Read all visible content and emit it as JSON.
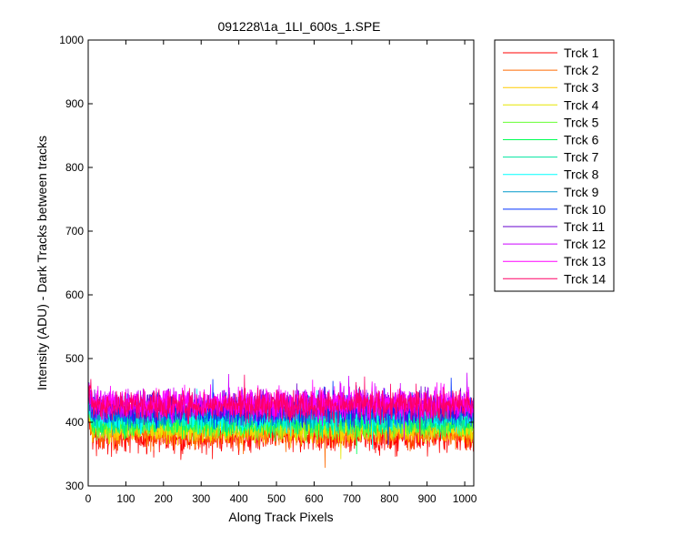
{
  "chart_data": {
    "type": "line",
    "title": "091228\\1a_1LI_600s_1.SPE",
    "xlabel": "Along Track Pixels",
    "ylabel": "Intensity (ADU) - Dark Tracks between tracks",
    "xlim": [
      0,
      1024
    ],
    "ylim": [
      300,
      1000
    ],
    "xticks": [
      0,
      100,
      200,
      300,
      400,
      500,
      600,
      700,
      800,
      900,
      1000
    ],
    "yticks": [
      300,
      400,
      500,
      600,
      700,
      800,
      900,
      1000
    ],
    "grid": false,
    "legend_position": "outside-right",
    "points_per_series": 1024,
    "series": [
      {
        "name": "Trck 1",
        "color": "#ff0000",
        "mean": 378,
        "noise": 13
      },
      {
        "name": "Trck 2",
        "color": "#ff6a00",
        "mean": 384,
        "noise": 12
      },
      {
        "name": "Trck 3",
        "color": "#ffcc00",
        "mean": 390,
        "noise": 11
      },
      {
        "name": "Trck 4",
        "color": "#e6e600",
        "mean": 393,
        "noise": 11
      },
      {
        "name": "Trck 5",
        "color": "#66ff33",
        "mean": 397,
        "noise": 11
      },
      {
        "name": "Trck 6",
        "color": "#00ff55",
        "mean": 401,
        "noise": 11
      },
      {
        "name": "Trck 7",
        "color": "#00e6a0",
        "mean": 405,
        "noise": 11
      },
      {
        "name": "Trck 8",
        "color": "#00ffff",
        "mean": 409,
        "noise": 11
      },
      {
        "name": "Trck 9",
        "color": "#0099cc",
        "mean": 413,
        "noise": 11
      },
      {
        "name": "Trck 10",
        "color": "#0033ff",
        "mean": 420,
        "noise": 12
      },
      {
        "name": "Trck 11",
        "color": "#6600cc",
        "mean": 424,
        "noise": 12
      },
      {
        "name": "Trck 12",
        "color": "#cc00ff",
        "mean": 428,
        "noise": 12
      },
      {
        "name": "Trck 13",
        "color": "#ff00ff",
        "mean": 430,
        "noise": 12
      },
      {
        "name": "Trck 14",
        "color": "#ff0066",
        "mean": 427,
        "noise": 12
      }
    ]
  }
}
